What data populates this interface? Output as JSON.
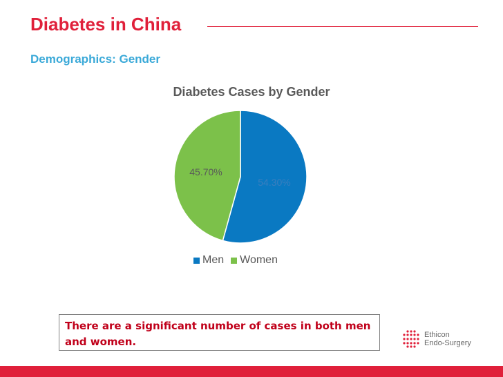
{
  "slide": {
    "title": "Diabetes in China",
    "subtitle": "Demographics: Gender",
    "note": "There are a significant number of cases in both men and women.",
    "logo": {
      "line1": "Ethicon",
      "line2": "Endo-Surgery"
    }
  },
  "colors": {
    "title": "#e0203a",
    "subtitle": "#3aa9d8",
    "men": "#0a79c2",
    "women": "#7cc14a",
    "bar": "#e0203a"
  },
  "chart_data": {
    "type": "pie",
    "title": "Diabetes Cases by Gender",
    "categories": [
      "Men",
      "Women"
    ],
    "values": [
      54.3,
      45.7
    ],
    "data_labels": [
      "54.30%",
      "45.70%"
    ],
    "legend": "bottom"
  }
}
